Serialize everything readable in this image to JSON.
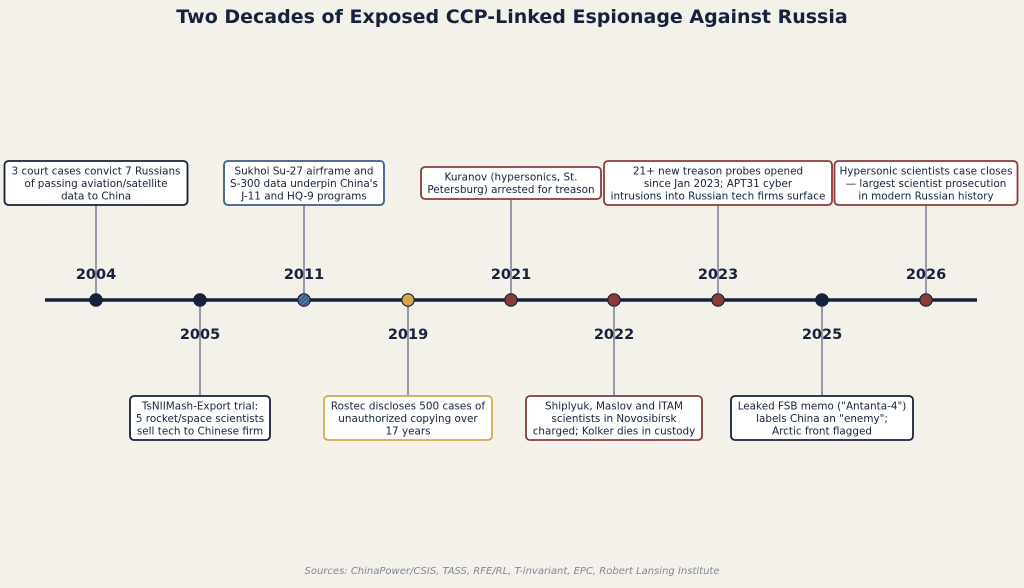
{
  "title": "Two Decades of Exposed CCP-Linked Espionage Against Russia",
  "sources": "Sources: ChinaPower/CSIS, TASS, RFE/RL, T-invariant, EPC, Robert Lansing Institute",
  "colors": {
    "background": "#f4f0ea",
    "axis": "#15223b",
    "navy": "#15223b",
    "blue": "#3b5a8c",
    "gold": "#d4a94a",
    "red": "#8b3a3a",
    "stem": "#7d8594",
    "text": "#15223b"
  },
  "events": [
    {
      "year": "2004",
      "side": "above",
      "color": "navy",
      "marker": "solid",
      "lines": [
        "3 court cases convict 7 Russians",
        "of passing aviation/satellite",
        "data to China"
      ]
    },
    {
      "year": "2005",
      "side": "below",
      "color": "navy",
      "marker": "solid",
      "lines": [
        "TsNIIMash-Export trial:",
        "5 rocket/space scientists",
        "sell tech to Chinese firm"
      ]
    },
    {
      "year": "2011",
      "side": "above",
      "color": "blue",
      "marker": "hatched",
      "lines": [
        "Sukhoi Su-27 airframe and",
        "S-300 data underpin China's",
        "J-11 and HQ-9 programs"
      ]
    },
    {
      "year": "2019",
      "side": "below",
      "color": "gold",
      "marker": "solid",
      "lines": [
        "Rostec discloses 500 cases of",
        "unauthorized copying over",
        "17 years"
      ]
    },
    {
      "year": "2021",
      "side": "above",
      "color": "red",
      "marker": "solid",
      "lines": [
        "Kuranov (hypersonics, St.",
        "Petersburg) arrested for treason"
      ]
    },
    {
      "year": "2022",
      "side": "below",
      "color": "red",
      "marker": "solid",
      "lines": [
        "Shiplyuk, Maslov and ITAM",
        "scientists in Novosibirsk",
        "charged; Kolker dies in custody"
      ]
    },
    {
      "year": "2023",
      "side": "above",
      "color": "red",
      "marker": "solid",
      "lines": [
        "21+ new treason probes opened",
        "since Jan 2023; APT31 cyber",
        "intrusions into Russian tech firms surface"
      ]
    },
    {
      "year": "2025",
      "side": "below",
      "color": "navy",
      "marker": "solid",
      "lines": [
        "Leaked FSB memo (\"Antanta-4\")",
        "labels China an \"enemy\";",
        "Arctic front flagged"
      ]
    },
    {
      "year": "2026",
      "side": "above",
      "color": "red",
      "marker": "solid",
      "lines": [
        "Hypersonic scientists case closes",
        "— largest scientist prosecution",
        "in modern Russian history"
      ]
    }
  ]
}
